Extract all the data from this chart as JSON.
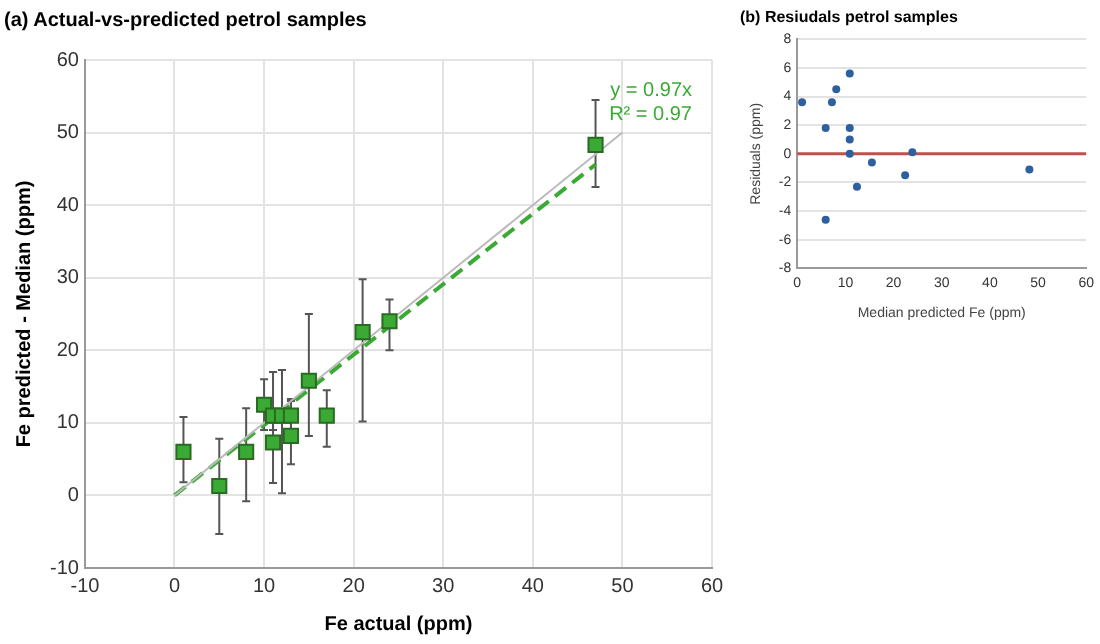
{
  "chart_data": [
    {
      "type": "scatter",
      "title": "(a) Actual-vs-predicted petrol samples",
      "xlabel": "Fe actual (ppm)",
      "ylabel": "Fe predicted - Median (ppm)",
      "xlim": [
        -10,
        60
      ],
      "xticks": [
        -10,
        0,
        10,
        20,
        30,
        40,
        50,
        60
      ],
      "ylim": [
        -10,
        60
      ],
      "yticks": [
        -10,
        0,
        10,
        20,
        30,
        40,
        50,
        60
      ],
      "grid": true,
      "legend": false,
      "marker": "square",
      "annotations": [
        "y = 0.97x",
        "R² = 0.97"
      ],
      "series": [
        {
          "type": "scatter",
          "color": "#3aaa35",
          "x": [
            1,
            5,
            8,
            10,
            11,
            11,
            12,
            13,
            13,
            15,
            17,
            21,
            24,
            47
          ],
          "values": [
            6,
            1.3,
            6,
            12.5,
            11,
            7.3,
            11,
            11,
            8.2,
            15.8,
            11,
            22.5,
            24,
            48.3
          ],
          "errors": [
            [
              1.8,
              10.8
            ],
            [
              -5.3,
              7.8
            ],
            [
              -0.8,
              12
            ],
            [
              9,
              16
            ],
            [
              9,
              17
            ],
            [
              1.7,
              10
            ],
            [
              0.3,
              17.3
            ],
            [
              9,
              13
            ],
            [
              4.3,
              13.3
            ],
            [
              8.2,
              25
            ],
            [
              6.7,
              14.5
            ],
            [
              10.2,
              29.8
            ],
            [
              20,
              27
            ],
            [
              42.5,
              54.5
            ]
          ]
        },
        {
          "type": "line",
          "color": "#bbbbbb",
          "x": [
            0,
            50
          ],
          "values": [
            0,
            50
          ],
          "marker": "none",
          "line_style": "solid"
        },
        {
          "type": "line",
          "color": "#3aaa35",
          "x": [
            0,
            47
          ],
          "values": [
            0,
            45.6
          ],
          "marker": "none",
          "line_style": "dashed"
        }
      ]
    },
    {
      "type": "scatter",
      "title": "(b) Resiudals petrol samples",
      "xlabel": "Median predicted Fe (ppm)",
      "ylabel": "Residuals (ppm)",
      "xlim": [
        0,
        60
      ],
      "xticks": [
        0,
        10,
        20,
        30,
        40,
        50,
        60
      ],
      "ylim": [
        -8,
        8
      ],
      "yticks": [
        -8,
        -6,
        -4,
        -2,
        0,
        2,
        4,
        6,
        8
      ],
      "grid": "y",
      "legend": false,
      "marker": "circle",
      "ref_lines": [
        {
          "axis": "y",
          "value": 0,
          "color": "#c0504d"
        }
      ],
      "series": [
        {
          "color": "#2e5f9e",
          "x": [
            1,
            5.9,
            7.2,
            8.1,
            10.9,
            10.9,
            10.9,
            10.9,
            12.4,
            15.5,
            22.4,
            23.9,
            48.2,
            5.9
          ],
          "values": [
            3.6,
            1.8,
            3.6,
            4.5,
            5.6,
            1.8,
            1,
            0,
            -2.3,
            -0.6,
            -1.5,
            0.1,
            -1.1,
            -4.6
          ]
        }
      ]
    }
  ]
}
